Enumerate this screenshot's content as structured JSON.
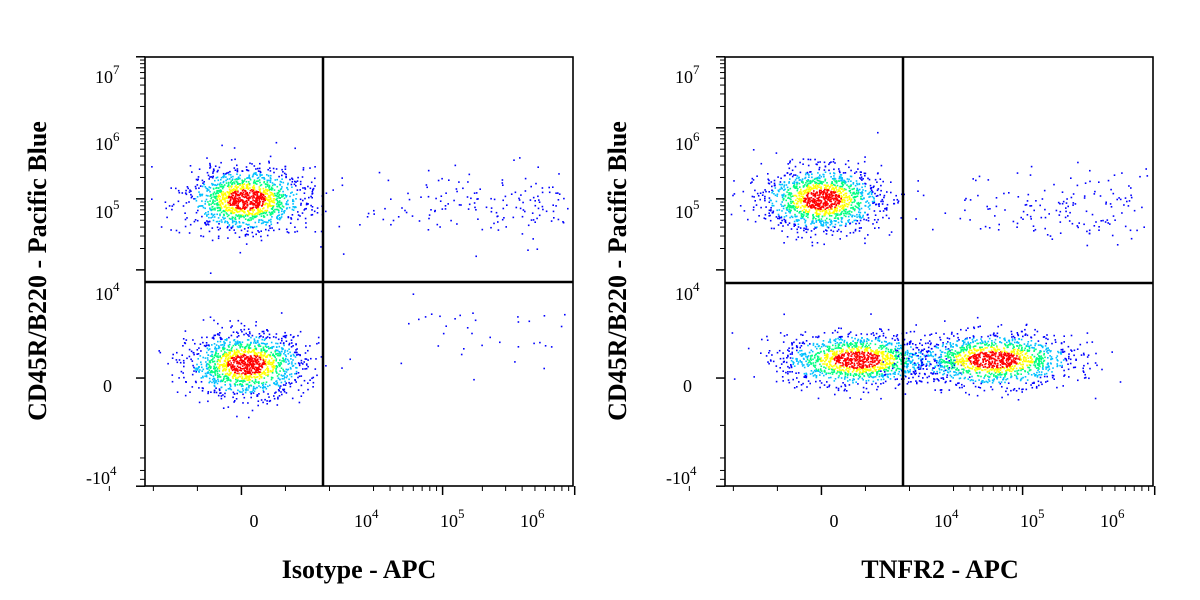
{
  "chart_data": [
    {
      "type": "scatter",
      "subtype": "flow-cytometry-density-dot-plot",
      "xlabel": "Isotype - APC",
      "ylabel": "CD45R/B220 - Pacific Blue",
      "x_scale": "biexponential",
      "y_scale": "biexponential",
      "x_tick_labels": [
        "0",
        "10^4",
        "10^5",
        "10^6"
      ],
      "y_tick_labels": [
        "10^7",
        "10^6",
        "10^5",
        "10^4",
        "0",
        "-10^4"
      ],
      "quadrant_gate": {
        "x": 3000,
        "y": 15000
      },
      "populations": [
        {
          "quadrant": "upper-left",
          "center": {
            "x": 100,
            "y": 100000
          },
          "relative_density": "high"
        },
        {
          "quadrant": "upper-right",
          "center": {
            "x": 30000,
            "y": 80000
          },
          "relative_density": "sparse"
        },
        {
          "quadrant": "lower-left",
          "center": {
            "x": 100,
            "y": 600
          },
          "relative_density": "high"
        },
        {
          "quadrant": "lower-right",
          "center": {
            "x": 20000,
            "y": 2000
          },
          "relative_density": "very sparse"
        }
      ],
      "color_scale": [
        "#0000ff",
        "#00c0ff",
        "#00ff80",
        "#ffff00",
        "#ff0000"
      ]
    },
    {
      "type": "scatter",
      "subtype": "flow-cytometry-density-dot-plot",
      "xlabel": "TNFR2 - APC",
      "ylabel": "CD45R/B220 - Pacific Blue",
      "x_scale": "biexponential",
      "y_scale": "biexponential",
      "x_tick_labels": [
        "0",
        "10^4",
        "10^5",
        "10^6"
      ],
      "y_tick_labels": [
        "10^7",
        "10^6",
        "10^5",
        "10^4",
        "0",
        "-10^4"
      ],
      "quadrant_gate": {
        "x": 3000,
        "y": 15000
      },
      "populations": [
        {
          "quadrant": "upper-left",
          "center": {
            "x": 0,
            "y": 100000
          },
          "relative_density": "high"
        },
        {
          "quadrant": "upper-right",
          "center": {
            "x": 30000,
            "y": 80000
          },
          "relative_density": "sparse"
        },
        {
          "quadrant": "lower-left",
          "center": {
            "x": 800,
            "y": 800
          },
          "relative_density": "high"
        },
        {
          "quadrant": "lower-right",
          "center": {
            "x": 6000,
            "y": 800
          },
          "relative_density": "high"
        }
      ],
      "color_scale": [
        "#0000ff",
        "#00c0ff",
        "#00ff80",
        "#ffff00",
        "#ff0000"
      ]
    }
  ]
}
